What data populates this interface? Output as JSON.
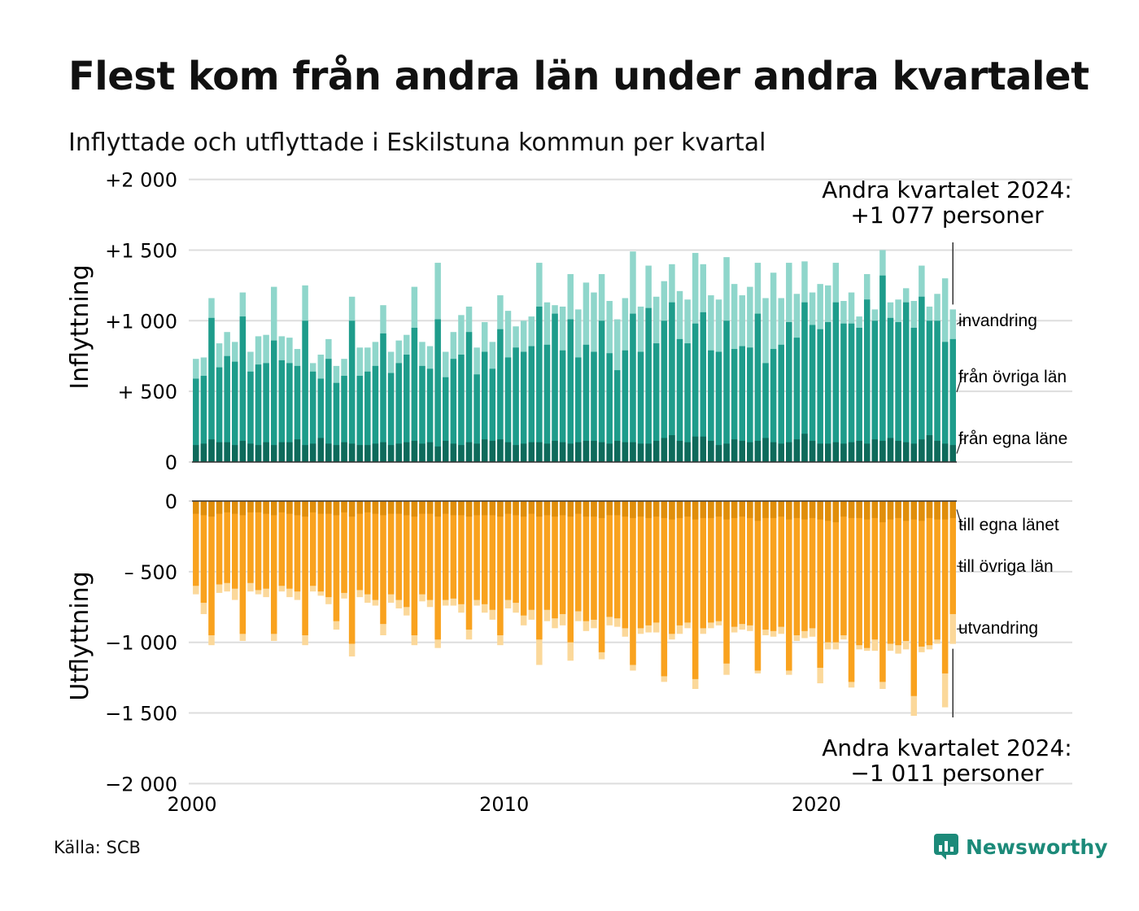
{
  "title": "Flest kom från andra län under andra kvartalet",
  "subtitle": "Inflyttade och utflyttade i Eskilstuna kommun per kvartal",
  "source": "Källa: SCB",
  "brand": "Newsworthy",
  "colors": {
    "in_own": "#0e6a5b",
    "in_other": "#1e9c8b",
    "in_imm": "#8fd6cb",
    "out_own": "#e08e0b",
    "out_other": "#f9a21e",
    "out_emig": "#fbd89a",
    "grid": "#dddddd",
    "brand": "#1c8a79"
  },
  "chart_data": [
    {
      "type": "bar",
      "stacked": true,
      "ylabel": "Inflyttning",
      "ylim": [
        0,
        2000
      ],
      "yticks": [
        0,
        500,
        1000,
        1500,
        2000
      ],
      "ytick_labels": [
        "0",
        "+  500",
        "+1 000",
        "+1 500",
        "+2 000"
      ],
      "xlim": [
        2000,
        2028.2
      ],
      "xticks": [
        2000,
        2010,
        2020
      ],
      "xtick_labels": [
        "2000",
        "2010",
        "2020"
      ],
      "first_quarter": "2000 Q1",
      "quarter_count": 98,
      "annotation": [
        "Andra kvartalet 2024:",
        "+1 077 personer"
      ],
      "series": [
        {
          "name": "från egna länet",
          "label": "från egna läne",
          "total": [
            120,
            130,
            160,
            140,
            140,
            120,
            150,
            130,
            120,
            140,
            120,
            140,
            140,
            160,
            120,
            130,
            170,
            130,
            120,
            140,
            130,
            120,
            120,
            130,
            140,
            120,
            130,
            140,
            150,
            130,
            140,
            110,
            150,
            130,
            120,
            140,
            130,
            160,
            150,
            160,
            140,
            120,
            130,
            140,
            140,
            130,
            150,
            140,
            130,
            140,
            150,
            150,
            140,
            130,
            150,
            140,
            140,
            130,
            130,
            150,
            170,
            190,
            150,
            140,
            180,
            180,
            150,
            120,
            130,
            160,
            150,
            140,
            150,
            170,
            140,
            130,
            140,
            160,
            200,
            150,
            130,
            130,
            140,
            130,
            140,
            150,
            130,
            160,
            150,
            170,
            150,
            140,
            130,
            160,
            190,
            150,
            130,
            120
          ]
        },
        {
          "name": "från övriga län",
          "label": "från övriga län",
          "total": [
            590,
            610,
            1020,
            670,
            750,
            710,
            1030,
            640,
            690,
            700,
            860,
            720,
            700,
            680,
            1000,
            640,
            590,
            730,
            560,
            610,
            1000,
            610,
            640,
            680,
            910,
            630,
            700,
            760,
            950,
            680,
            660,
            1010,
            600,
            730,
            760,
            920,
            620,
            780,
            660,
            940,
            740,
            810,
            780,
            820,
            1100,
            830,
            1050,
            790,
            1010,
            740,
            830,
            780,
            1000,
            770,
            650,
            790,
            1050,
            780,
            1090,
            840,
            1000,
            1130,
            870,
            840,
            980,
            1060,
            790,
            780,
            1000,
            800,
            820,
            810,
            1050,
            700,
            800,
            830,
            990,
            880,
            1130,
            970,
            940,
            990,
            1130,
            980,
            980,
            950,
            1150,
            1000,
            1320,
            1020,
            990,
            1130,
            950,
            1170,
            1000,
            1000,
            850,
            870
          ]
        },
        {
          "name": "invandring",
          "label": "invandring",
          "total": [
            730,
            740,
            1160,
            840,
            920,
            850,
            1200,
            780,
            890,
            900,
            1240,
            890,
            880,
            800,
            1250,
            700,
            760,
            870,
            680,
            730,
            1170,
            810,
            810,
            850,
            1110,
            780,
            860,
            900,
            1240,
            850,
            820,
            1410,
            780,
            920,
            1040,
            1100,
            810,
            990,
            850,
            1180,
            1070,
            960,
            1000,
            1030,
            1410,
            1130,
            1110,
            1100,
            1330,
            1080,
            1270,
            1200,
            1330,
            1140,
            1010,
            1160,
            1490,
            1100,
            1390,
            1170,
            1280,
            1400,
            1210,
            1150,
            1480,
            1400,
            1180,
            1150,
            1450,
            1260,
            1180,
            1240,
            1410,
            1160,
            1340,
            1160,
            1410,
            1190,
            1420,
            1200,
            1260,
            1250,
            1410,
            1140,
            1200,
            1030,
            1330,
            1080,
            1500,
            1130,
            1150,
            1230,
            1140,
            1390,
            1100,
            1190,
            1300,
            1080
          ]
        }
      ]
    },
    {
      "type": "bar",
      "stacked": true,
      "ylabel": "Utflyttning",
      "ylim": [
        -2000,
        0
      ],
      "yticks": [
        0,
        -500,
        -1000,
        -1500,
        -2000
      ],
      "ytick_labels": [
        "0",
        "–  500",
        "−1 000",
        "−1 500",
        "−2 000"
      ],
      "annotation": [
        "Andra kvartalet 2024:",
        "−1 011 personer"
      ],
      "series": [
        {
          "name": "till egna länet",
          "label": "till egna länet",
          "total": [
            -90,
            -100,
            -110,
            -90,
            -80,
            -90,
            -100,
            -80,
            -80,
            -90,
            -100,
            -80,
            -90,
            -100,
            -110,
            -80,
            -90,
            -90,
            -100,
            -80,
            -110,
            -90,
            -80,
            -90,
            -100,
            -90,
            -90,
            -100,
            -110,
            -90,
            -90,
            -110,
            -90,
            -100,
            -100,
            -110,
            -100,
            -100,
            -100,
            -110,
            -90,
            -100,
            -110,
            -90,
            -110,
            -100,
            -110,
            -100,
            -110,
            -90,
            -110,
            -110,
            -120,
            -100,
            -100,
            -110,
            -120,
            -110,
            -120,
            -110,
            -120,
            -130,
            -120,
            -110,
            -130,
            -120,
            -120,
            -110,
            -130,
            -120,
            -110,
            -120,
            -140,
            -120,
            -120,
            -110,
            -130,
            -120,
            -130,
            -120,
            -130,
            -140,
            -150,
            -110,
            -120,
            -120,
            -130,
            -120,
            -150,
            -130,
            -120,
            -140,
            -130,
            -140,
            -120,
            -130,
            -130,
            -120
          ]
        },
        {
          "name": "till övriga län",
          "label": "till övriga län",
          "total": [
            -600,
            -720,
            -950,
            -590,
            -580,
            -620,
            -940,
            -580,
            -630,
            -620,
            -940,
            -600,
            -620,
            -640,
            -950,
            -600,
            -640,
            -680,
            -850,
            -650,
            -1010,
            -630,
            -660,
            -700,
            -870,
            -660,
            -700,
            -750,
            -950,
            -660,
            -700,
            -980,
            -700,
            -690,
            -730,
            -910,
            -700,
            -730,
            -770,
            -950,
            -700,
            -720,
            -810,
            -770,
            -980,
            -770,
            -830,
            -800,
            -1000,
            -780,
            -850,
            -840,
            -1070,
            -820,
            -830,
            -900,
            -1160,
            -900,
            -880,
            -860,
            -1240,
            -940,
            -880,
            -860,
            -1260,
            -900,
            -860,
            -850,
            -1150,
            -890,
            -870,
            -880,
            -1200,
            -910,
            -920,
            -890,
            -1200,
            -950,
            -920,
            -900,
            -1180,
            -1000,
            -1000,
            -950,
            -1280,
            -1020,
            -1040,
            -980,
            -1280,
            -1010,
            -1020,
            -990,
            -1380,
            -1030,
            -1020,
            -980,
            -1220,
            -800
          ]
        },
        {
          "name": "utvandring",
          "label": "utvandring",
          "total": [
            -660,
            -800,
            -1020,
            -650,
            -640,
            -700,
            -990,
            -640,
            -660,
            -680,
            -990,
            -640,
            -680,
            -700,
            -1020,
            -640,
            -670,
            -730,
            -910,
            -690,
            -1100,
            -680,
            -720,
            -740,
            -950,
            -720,
            -760,
            -810,
            -1020,
            -710,
            -750,
            -1040,
            -740,
            -740,
            -790,
            -980,
            -740,
            -790,
            -840,
            -1020,
            -760,
            -790,
            -880,
            -840,
            -1160,
            -850,
            -900,
            -880,
            -1130,
            -850,
            -920,
            -900,
            -1120,
            -880,
            -890,
            -960,
            -1200,
            -940,
            -930,
            -930,
            -1280,
            -980,
            -940,
            -900,
            -1330,
            -940,
            -900,
            -880,
            -1230,
            -930,
            -910,
            -920,
            -1220,
            -950,
            -960,
            -940,
            -1230,
            -990,
            -970,
            -960,
            -1290,
            -1050,
            -1050,
            -980,
            -1320,
            -1050,
            -1060,
            -1060,
            -1330,
            -1060,
            -1080,
            -1050,
            -1520,
            -1070,
            -1050,
            -1010,
            -1460,
            -1011
          ]
        }
      ]
    }
  ]
}
